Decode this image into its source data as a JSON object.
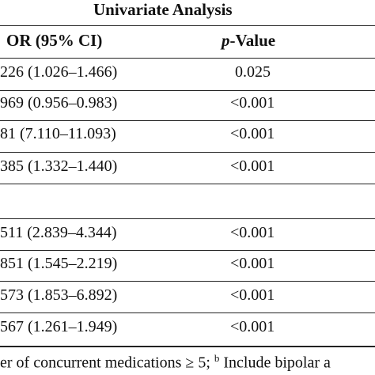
{
  "table": {
    "group_header": "Univariate Analysis",
    "col_or_header": "OR (95% CI)",
    "col_p_italic": "p",
    "col_p_rest": "-Value",
    "rows": [
      {
        "or": "226 (1.026–1.466)",
        "p": "0.025"
      },
      {
        "or": "969 (0.956–0.983)",
        "p": "<0.001"
      },
      {
        "or": "81 (7.110–11.093)",
        "p": "<0.001"
      },
      {
        "or": "385 (1.332–1.440)",
        "p": "<0.001"
      },
      {
        "or": "",
        "p": ""
      },
      {
        "or": "511 (2.839–4.344)",
        "p": "<0.001"
      },
      {
        "or": "851 (1.545–2.219)",
        "p": "<0.001"
      },
      {
        "or": "573 (1.853–6.892)",
        "p": "<0.001"
      },
      {
        "or": "567 (1.261–1.949)",
        "p": "<0.001"
      }
    ]
  },
  "footnote": {
    "text_before": "er of concurrent medications ≥ 5;",
    "superscript": "b",
    "text_after": "Include bipolar a"
  }
}
